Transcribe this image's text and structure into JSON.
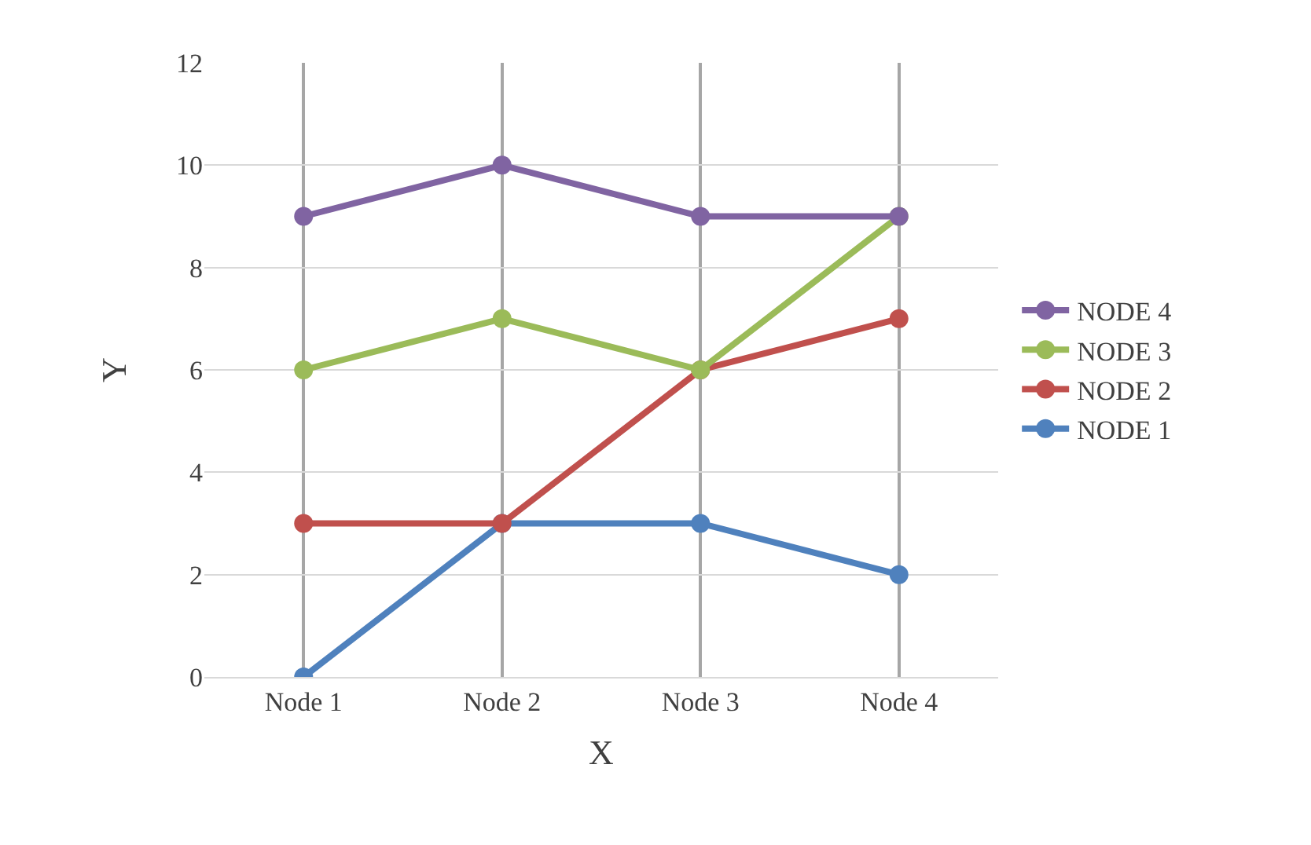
{
  "chart_data": {
    "type": "line",
    "xlabel": "X",
    "ylabel": "Y",
    "categories": [
      "Node 1",
      "Node 2",
      "Node 3",
      "Node 4"
    ],
    "series": [
      {
        "name": "NODE 1",
        "color": "#4f81bd",
        "values": [
          0,
          3,
          3,
          2
        ]
      },
      {
        "name": "NODE 2",
        "color": "#c0504d",
        "values": [
          3,
          3,
          6,
          7
        ]
      },
      {
        "name": "NODE 3",
        "color": "#9bbb59",
        "values": [
          6,
          7,
          6,
          9
        ]
      },
      {
        "name": "NODE 4",
        "color": "#8064a2",
        "values": [
          9,
          10,
          9,
          9
        ]
      }
    ],
    "ylim": [
      0,
      12
    ],
    "yticks": [
      0,
      2,
      4,
      6,
      8,
      10,
      12
    ],
    "grid": true,
    "legend": "right",
    "marker": "circle",
    "line_style": "solid"
  }
}
